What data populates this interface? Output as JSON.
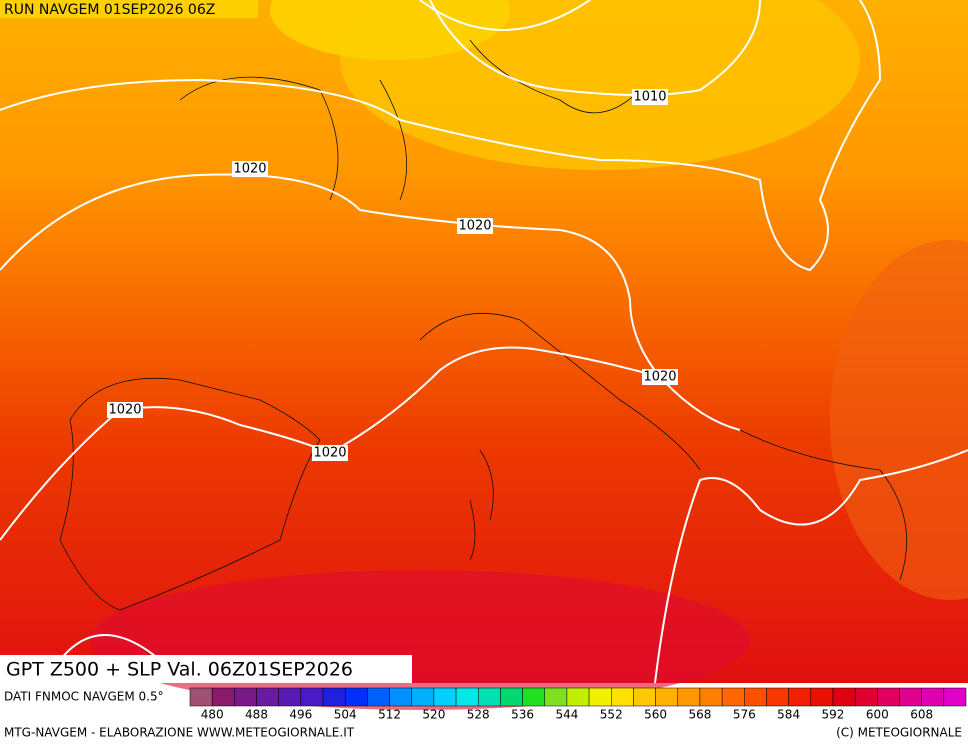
{
  "header": {
    "run": "RUN NAVGEM 01SEP2026 06Z"
  },
  "map": {
    "isobar_labels": [
      "1010",
      "1020",
      "1020",
      "1020",
      "1020",
      "1020"
    ]
  },
  "footer": {
    "title": "GPT Z500 + SLP Val. 06Z01SEP2026",
    "source": "DATI FNMOC NAVGEM 0.5°",
    "credit": "MTG-NAVGEM - ELABORAZIONE WWW.METEOGIORNALE.IT",
    "copyright": "(C) METEOGIORNALE"
  },
  "colorbar": {
    "labels": [
      480,
      488,
      496,
      504,
      512,
      520,
      528,
      536,
      544,
      552,
      560,
      568,
      576,
      584,
      592,
      600,
      608
    ],
    "colors": [
      "#a05070",
      "#8b1a6b",
      "#7a1a8a",
      "#6a1aa0",
      "#5a1ab4",
      "#4a1ac8",
      "#2020e0",
      "#0030ff",
      "#0060ff",
      "#0090ff",
      "#00b0ff",
      "#00d0ff",
      "#00e8e8",
      "#00e0b0",
      "#00d870",
      "#20e020",
      "#80e020",
      "#c0f000",
      "#f0f000",
      "#ffe000",
      "#ffc800",
      "#ffb000",
      "#ff9800",
      "#ff8000",
      "#ff6800",
      "#ff5000",
      "#f83800",
      "#f02000",
      "#e81000",
      "#e00010",
      "#e00030",
      "#e00060",
      "#e00090",
      "#e000b0",
      "#e000c8"
    ]
  }
}
